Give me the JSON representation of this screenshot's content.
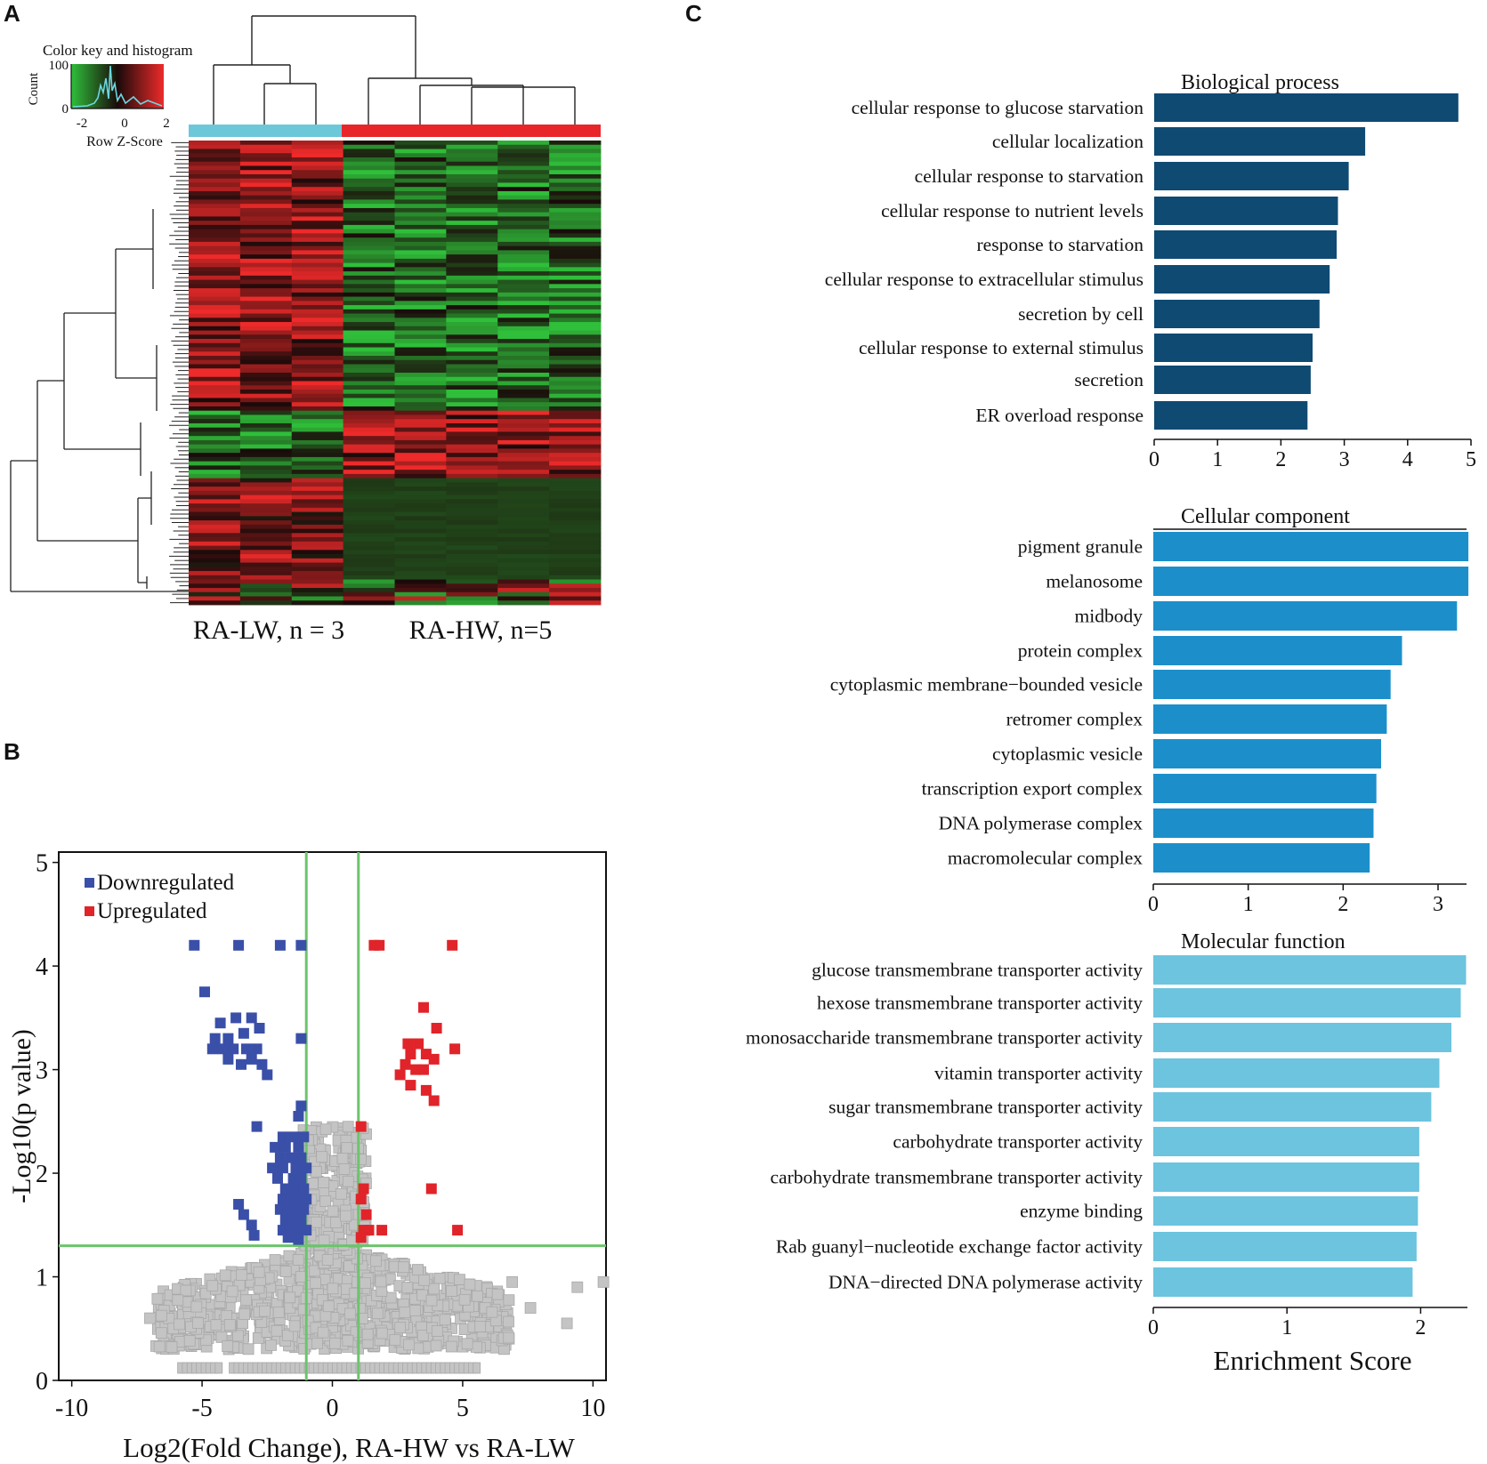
{
  "panels": {
    "a": "A",
    "b": "B",
    "c": "C"
  },
  "chart_data": [
    {
      "type": "heatmap",
      "panel": "A",
      "color_key": {
        "title": "Color key and histogram",
        "ylabel": "Count",
        "y_ticks": [
          "100",
          "0"
        ],
        "x_ticks": [
          "-2",
          "0",
          "2"
        ],
        "xlabel": "Row Z-Score",
        "colors": {
          "low": "#2fbf3a",
          "mid": "#1a0a0a",
          "high": "#ee2a2a"
        }
      },
      "groups": [
        {
          "label": "RA-LW, n = 3",
          "n": 3,
          "color": "#6cc8d8"
        },
        {
          "label": "RA-HW, n=5",
          "n": 5,
          "color": "#e8262a"
        }
      ]
    },
    {
      "type": "scatter",
      "panel": "B",
      "xlabel": "Log2(Fold Change), RA-HW vs RA-LW",
      "ylabel": "-Log10(p value)",
      "xlim": [
        -10.5,
        10.5
      ],
      "ylim": [
        0,
        5.1
      ],
      "x_ticks": [
        -10,
        -5,
        0,
        5,
        10
      ],
      "y_ticks": [
        0,
        1,
        2,
        3,
        4,
        5
      ],
      "legend": [
        {
          "label": "Downregulated",
          "color": "#3a4fa8"
        },
        {
          "label": "Upregulated",
          "color": "#e0242a"
        }
      ],
      "thresholds": {
        "fold_change": [
          -1,
          1
        ],
        "neg_log10_p": 1.3,
        "line_color": "#6cc46c"
      },
      "down_points": [
        [
          -5.3,
          4.2
        ],
        [
          -3.6,
          4.2
        ],
        [
          -2.0,
          4.2
        ],
        [
          -1.2,
          4.2
        ],
        [
          -4.9,
          3.75
        ],
        [
          -4.3,
          3.45
        ],
        [
          -3.7,
          3.5
        ],
        [
          -3.1,
          3.5
        ],
        [
          -4.5,
          3.3
        ],
        [
          -4.0,
          3.3
        ],
        [
          -3.4,
          3.35
        ],
        [
          -2.8,
          3.4
        ],
        [
          -4.6,
          3.2
        ],
        [
          -4.2,
          3.2
        ],
        [
          -3.8,
          3.2
        ],
        [
          -3.3,
          3.2
        ],
        [
          -2.9,
          3.2
        ],
        [
          -4.0,
          3.1
        ],
        [
          -3.5,
          3.05
        ],
        [
          -3.1,
          3.1
        ],
        [
          -2.7,
          3.05
        ],
        [
          -2.5,
          2.95
        ],
        [
          -1.2,
          3.3
        ],
        [
          -1.2,
          2.65
        ],
        [
          -1.3,
          2.55
        ],
        [
          -2.9,
          2.45
        ],
        [
          -1.9,
          2.35
        ],
        [
          -1.5,
          2.35
        ],
        [
          -1.1,
          2.35
        ],
        [
          -2.2,
          2.25
        ],
        [
          -1.8,
          2.25
        ],
        [
          -1.3,
          2.25
        ],
        [
          -2.0,
          2.15
        ],
        [
          -1.6,
          2.15
        ],
        [
          -1.2,
          2.15
        ],
        [
          -2.3,
          2.05
        ],
        [
          -1.9,
          2.05
        ],
        [
          -1.4,
          2.05
        ],
        [
          -1.0,
          2.05
        ],
        [
          -2.1,
          1.95
        ],
        [
          -1.5,
          1.95
        ],
        [
          -1.2,
          1.95
        ],
        [
          -1.8,
          1.85
        ],
        [
          -1.4,
          1.85
        ],
        [
          -1.1,
          1.85
        ],
        [
          -1.9,
          1.75
        ],
        [
          -1.6,
          1.75
        ],
        [
          -1.3,
          1.75
        ],
        [
          -1.0,
          1.75
        ],
        [
          -2.0,
          1.65
        ],
        [
          -1.7,
          1.65
        ],
        [
          -1.4,
          1.65
        ],
        [
          -1.1,
          1.65
        ],
        [
          -1.8,
          1.55
        ],
        [
          -1.5,
          1.55
        ],
        [
          -1.2,
          1.55
        ],
        [
          -1.9,
          1.45
        ],
        [
          -1.6,
          1.45
        ],
        [
          -1.3,
          1.45
        ],
        [
          -1.0,
          1.45
        ],
        [
          -3.6,
          1.7
        ],
        [
          -3.4,
          1.6
        ],
        [
          -3.1,
          1.5
        ],
        [
          -3.0,
          1.4
        ],
        [
          -1.7,
          1.38
        ],
        [
          -1.3,
          1.36
        ]
      ],
      "up_points": [
        [
          1.6,
          4.2
        ],
        [
          1.8,
          4.2
        ],
        [
          4.6,
          4.2
        ],
        [
          3.5,
          3.6
        ],
        [
          4.0,
          3.4
        ],
        [
          4.7,
          3.2
        ],
        [
          2.9,
          3.25
        ],
        [
          3.3,
          3.25
        ],
        [
          3.0,
          3.15
        ],
        [
          3.6,
          3.15
        ],
        [
          3.9,
          3.1
        ],
        [
          2.8,
          3.05
        ],
        [
          3.2,
          3.0
        ],
        [
          3.5,
          3.0
        ],
        [
          2.6,
          2.95
        ],
        [
          3.0,
          2.85
        ],
        [
          3.6,
          2.8
        ],
        [
          3.9,
          2.7
        ],
        [
          1.1,
          2.45
        ],
        [
          3.8,
          1.85
        ],
        [
          1.2,
          1.85
        ],
        [
          1.1,
          1.75
        ],
        [
          1.3,
          1.6
        ],
        [
          1.2,
          1.45
        ],
        [
          1.4,
          1.45
        ],
        [
          1.9,
          1.45
        ],
        [
          4.8,
          1.45
        ],
        [
          1.1,
          1.38
        ]
      ],
      "null_summary": "dense cloud of non-significant genes below p threshold"
    },
    {
      "type": "bar",
      "orientation": "horizontal",
      "panel": "C",
      "title": "Biological process",
      "color": "#0f4a73",
      "xlim": [
        0,
        5
      ],
      "x_ticks": [
        0,
        1,
        2,
        3,
        4,
        5
      ],
      "categories": [
        "cellular response to glucose starvation",
        "cellular localization",
        "cellular response to starvation",
        "cellular response to nutrient levels",
        "response to starvation",
        "cellular response to extracellular stimulus",
        "secretion by cell",
        "cellular response to external stimulus",
        "secretion",
        "ER overload response"
      ],
      "values": [
        4.8,
        3.33,
        3.07,
        2.9,
        2.88,
        2.77,
        2.61,
        2.5,
        2.47,
        2.42
      ]
    },
    {
      "type": "bar",
      "orientation": "horizontal",
      "panel": "C",
      "title": "Cellular component",
      "color": "#1c8fcb",
      "xlim": [
        0,
        3.3
      ],
      "x_ticks": [
        0,
        1,
        2,
        3
      ],
      "categories": [
        "pigment granule",
        "melanosome",
        "midbody",
        "protein complex",
        "cytoplasmic membrane−bounded vesicle",
        "retromer complex",
        "cytoplasmic vesicle",
        "transcription export complex",
        "DNA polymerase complex",
        "macromolecular complex"
      ],
      "values": [
        3.32,
        3.32,
        3.2,
        2.62,
        2.5,
        2.46,
        2.4,
        2.35,
        2.32,
        2.28
      ]
    },
    {
      "type": "bar",
      "orientation": "horizontal",
      "panel": "C",
      "title": "Molecular function",
      "color": "#6cc4df",
      "xlim": [
        0,
        2.35
      ],
      "x_ticks": [
        0,
        1,
        2
      ],
      "xlabel": "Enrichment Score",
      "categories": [
        "glucose transmembrane transporter activity",
        "hexose transmembrane transporter activity",
        "monosaccharide transmembrane transporter activity",
        "vitamin transporter activity",
        "sugar transmembrane transporter activity",
        "carbohydrate transporter activity",
        "carbohydrate transmembrane transporter activity",
        "enzyme binding",
        "Rab guanyl−nucleotide exchange factor activity",
        "DNA−directed DNA polymerase activity"
      ],
      "values": [
        2.34,
        2.3,
        2.23,
        2.14,
        2.08,
        1.99,
        1.99,
        1.98,
        1.97,
        1.94
      ]
    }
  ]
}
